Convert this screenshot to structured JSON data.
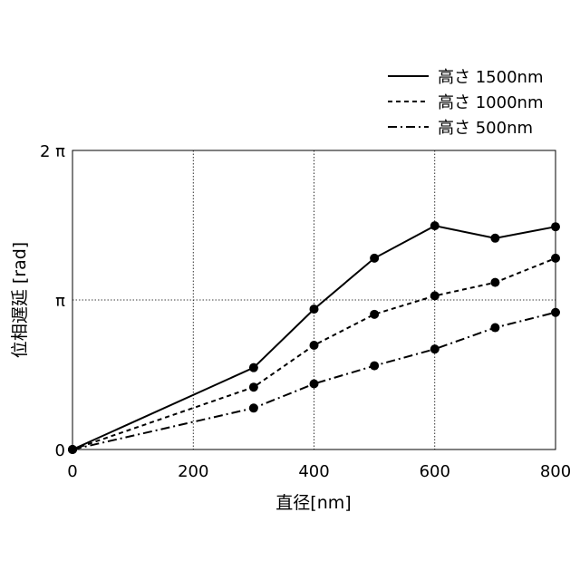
{
  "chart_data": {
    "type": "line",
    "xlabel": "直径[nm]",
    "ylabel": "位相遅延 [rad]",
    "xlim": [
      0,
      800
    ],
    "ylim": [
      0,
      6.2832
    ],
    "x_ticks": [
      {
        "value": 0,
        "label": "0"
      },
      {
        "value": 200,
        "label": "200"
      },
      {
        "value": 400,
        "label": "400"
      },
      {
        "value": 600,
        "label": "600"
      },
      {
        "value": 800,
        "label": "800"
      }
    ],
    "y_ticks": [
      {
        "value": 0,
        "label": "0"
      },
      {
        "value": 3.1416,
        "label": "π"
      },
      {
        "value": 6.2832,
        "label": "2 π"
      }
    ],
    "grid": true,
    "legend_position": "top-right",
    "series": [
      {
        "name": "高さ 1500nm",
        "dash": "solid",
        "x": [
          0,
          300,
          400,
          500,
          600,
          700,
          800
        ],
        "y": [
          0,
          1.72,
          2.95,
          4.02,
          4.7,
          4.44,
          4.68
        ]
      },
      {
        "name": "高さ 1000nm",
        "dash": "dashed",
        "x": [
          0,
          300,
          400,
          500,
          600,
          700,
          800
        ],
        "y": [
          0,
          1.31,
          2.19,
          2.84,
          3.23,
          3.51,
          4.02
        ]
      },
      {
        "name": "高さ 500nm",
        "dash": "dashdot",
        "x": [
          0,
          300,
          400,
          500,
          600,
          700,
          800
        ],
        "y": [
          0,
          0.87,
          1.38,
          1.76,
          2.11,
          2.56,
          2.88
        ]
      }
    ]
  }
}
